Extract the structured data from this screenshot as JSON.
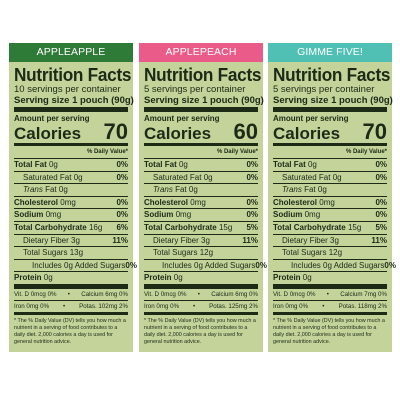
{
  "panels": [
    {
      "tab_label": "APPLEAPPLE",
      "title": "Nutrition Facts",
      "servings": "10 servings per container",
      "serving_size": "Serving size 1 pouch (90g)",
      "amount_label": "Amount per serving",
      "calories_label": "Calories",
      "calories_value": "70",
      "dv_header": "% Daily Value*",
      "total_fat": {
        "label": "Total Fat",
        "amount": "0g",
        "dv": "0%"
      },
      "saturated_fat": {
        "label": "Saturated Fat 0g",
        "dv": "0%"
      },
      "trans_fat": {
        "label_italic": "Trans",
        "label_rest": " Fat 0g"
      },
      "cholesterol": {
        "label": "Cholesterol",
        "amount": "0mg",
        "dv": "0%"
      },
      "sodium": {
        "label": "Sodium",
        "amount": "0mg",
        "dv": "0%"
      },
      "total_carb": {
        "label": "Total Carbohydrate",
        "amount": "16g",
        "dv": "6%"
      },
      "dietary_fiber": {
        "label": "Dietary Fiber 3g",
        "dv": "11%"
      },
      "total_sugars": {
        "label": "Total Sugars 13g"
      },
      "added_sugars": {
        "label": "Includes 0g Added Sugars",
        "dv": "0%"
      },
      "protein": {
        "label": "Protein",
        "amount": "0g"
      },
      "vit_row1": {
        "left": "Vit. D 0mcg 0%",
        "sep": "•",
        "right": "Calcium 6mg 0%"
      },
      "vit_row2": {
        "left": "Iron 0mg 0%",
        "sep": "•",
        "right": "Potas. 102mg 2%"
      },
      "footnote": "* The % Daily Value (DV) tells you how much a nutrient in a serving of food contributes to a daily diet. 2,000 calories a day is used for general nutrition advice."
    },
    {
      "tab_label": "APPLEPEACH",
      "title": "Nutrition Facts",
      "servings": "5 servings per container",
      "serving_size": "Serving size 1 pouch (90g)",
      "amount_label": "Amount per serving",
      "calories_label": "Calories",
      "calories_value": "60",
      "dv_header": "% Daily Value*",
      "total_fat": {
        "label": "Total Fat",
        "amount": "0g",
        "dv": "0%"
      },
      "saturated_fat": {
        "label": "Saturated Fat 0g",
        "dv": "0%"
      },
      "trans_fat": {
        "label_italic": "Trans",
        "label_rest": " Fat 0g"
      },
      "cholesterol": {
        "label": "Cholesterol",
        "amount": "0mg",
        "dv": "0%"
      },
      "sodium": {
        "label": "Sodium",
        "amount": "0mg",
        "dv": "0%"
      },
      "total_carb": {
        "label": "Total Carbohydrate",
        "amount": "15g",
        "dv": "5%"
      },
      "dietary_fiber": {
        "label": "Dietary Fiber 3g",
        "dv": "11%"
      },
      "total_sugars": {
        "label": "Total Sugars 12g"
      },
      "added_sugars": {
        "label": "Includes 0g Added Sugars",
        "dv": "0%"
      },
      "protein": {
        "label": "Protein",
        "amount": "0g"
      },
      "vit_row1": {
        "left": "Vit. D 0mcg 0%",
        "sep": "•",
        "right": "Calcium 6mg 0%"
      },
      "vit_row2": {
        "left": "Iron 0mg 0%",
        "sep": "•",
        "right": "Potas. 125mg 2%"
      },
      "footnote": "* The % Daily Value (DV) tells you how much a nutrient in a serving of food contributes to a daily diet. 2,000 calories a day is used for general nutrition advice."
    },
    {
      "tab_label": "GIMME FIVE!",
      "title": "Nutrition Facts",
      "servings": "5 servings per container",
      "serving_size": "Serving size 1 pouch (90g)",
      "amount_label": "Amount per serving",
      "calories_label": "Calories",
      "calories_value": "70",
      "dv_header": "% Daily Value*",
      "total_fat": {
        "label": "Total Fat",
        "amount": "0g",
        "dv": "0%"
      },
      "saturated_fat": {
        "label": "Saturated Fat 0g",
        "dv": "0%"
      },
      "trans_fat": {
        "label_italic": "Trans",
        "label_rest": " Fat 0g"
      },
      "cholesterol": {
        "label": "Cholesterol",
        "amount": "0mg",
        "dv": "0%"
      },
      "sodium": {
        "label": "Sodium",
        "amount": "0mg",
        "dv": "0%"
      },
      "total_carb": {
        "label": "Total Carbohydrate",
        "amount": "15g",
        "dv": "5%"
      },
      "dietary_fiber": {
        "label": "Dietary Fiber 3g",
        "dv": "11%"
      },
      "total_sugars": {
        "label": "Total Sugars 12g"
      },
      "added_sugars": {
        "label": "Includes 0g Added Sugars",
        "dv": "0%"
      },
      "protein": {
        "label": "Protein",
        "amount": "0g"
      },
      "vit_row1": {
        "left": "Vit. D 0mcg 0%",
        "sep": "•",
        "right": "Calcium 7mg 0%"
      },
      "vit_row2": {
        "left": "Iron 0mg 0%",
        "sep": "•",
        "right": "Potas. 118mg 2%"
      },
      "footnote": "* The % Daily Value (DV) tells you how much a nutrient in a serving of food contributes to a daily diet. 2,000 calories a day is used for general nutrition advice."
    }
  ],
  "colors": {
    "panel_background": "#c3d39a",
    "text": "#1d2a16",
    "tab_applepple": "#2e7a37",
    "tab_applepeach": "#ea5b8a",
    "tab_gimme_five": "#4fc0b3"
  }
}
